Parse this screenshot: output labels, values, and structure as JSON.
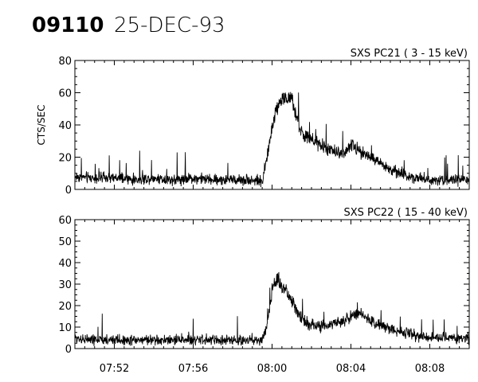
{
  "header": {
    "event_id": "09110",
    "date": "25-DEC-93"
  },
  "chart_data": [
    {
      "type": "line",
      "title": "SXS PC21  (  3 - 15 keV)",
      "ylabel": "CTS/SEC",
      "xlabel": "",
      "ylim": [
        0,
        80
      ],
      "yticks": [
        0,
        20,
        40,
        60,
        80
      ],
      "yticklabels": [
        "0",
        "20",
        "40",
        "60",
        "80"
      ],
      "xlim": [
        "07:50",
        "08:10"
      ],
      "xticks": [
        "07:52",
        "07:56",
        "08:00",
        "08:04",
        "08:08"
      ],
      "xticklabels": [],
      "grid": false,
      "series": [
        {
          "x": [
            "07:50",
            "07:51",
            "07:52",
            "07:53",
            "07:54",
            "07:55",
            "07:56",
            "07:57",
            "07:58",
            "07:59",
            "07:59:30",
            "07:59:45",
            "08:00",
            "08:00:15",
            "08:00:30",
            "08:00:45",
            "08:01",
            "08:01:15",
            "08:01:30",
            "08:02",
            "08:02:30",
            "08:03",
            "08:03:30",
            "08:04",
            "08:04:30",
            "08:05",
            "08:05:30",
            "08:06",
            "08:07",
            "08:08",
            "08:09",
            "08:10"
          ],
          "values": [
            8,
            7,
            7,
            6,
            7,
            6,
            7,
            6,
            6,
            6,
            5,
            20,
            38,
            52,
            56,
            57,
            55,
            45,
            35,
            30,
            27,
            24,
            22,
            27,
            24,
            20,
            16,
            12,
            8,
            6,
            6,
            6
          ]
        }
      ]
    },
    {
      "type": "line",
      "title": "SXS PC22  ( 15 - 40 keV)",
      "ylabel": "",
      "xlabel": "",
      "ylim": [
        0,
        60
      ],
      "yticks": [
        0,
        10,
        20,
        30,
        40,
        50,
        60
      ],
      "yticklabels": [
        "0",
        "10",
        "20",
        "30",
        "40",
        "50",
        "60"
      ],
      "xlim": [
        "07:50",
        "08:10"
      ],
      "xticks": [
        "07:52",
        "07:56",
        "08:00",
        "08:04",
        "08:08"
      ],
      "xticklabels": [
        "07:52",
        "07:56",
        "08:00",
        "08:04",
        "08:08"
      ],
      "grid": false,
      "series": [
        {
          "x": [
            "07:50",
            "07:51",
            "07:52",
            "07:53",
            "07:54",
            "07:55",
            "07:56",
            "07:57",
            "07:58",
            "07:59",
            "07:59:30",
            "07:59:45",
            "08:00",
            "08:00:15",
            "08:00:30",
            "08:00:45",
            "08:01",
            "08:01:15",
            "08:01:30",
            "08:02",
            "08:02:30",
            "08:03",
            "08:03:30",
            "08:04",
            "08:04:30",
            "08:05",
            "08:05:30",
            "08:06",
            "08:07",
            "08:08",
            "08:09",
            "08:10"
          ],
          "values": [
            5,
            4,
            4,
            4,
            4,
            4,
            4,
            4,
            4,
            4,
            4,
            10,
            28,
            32,
            29,
            26,
            22,
            18,
            14,
            11,
            10,
            11,
            13,
            15,
            16,
            13,
            11,
            9,
            7,
            5,
            5,
            5
          ]
        }
      ]
    }
  ]
}
